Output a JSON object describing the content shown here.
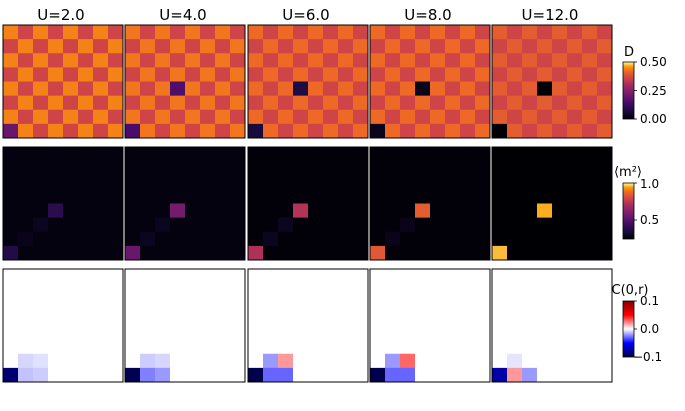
{
  "columns": [
    "U=2.0",
    "U=4.0",
    "U=6.0",
    "U=8.0",
    "U=12.0"
  ],
  "colorbars": [
    {
      "label": "D",
      "ticks": [
        "0.50",
        "0.25",
        "0.00"
      ]
    },
    {
      "label": "⟨m²⟩",
      "ticks": [
        "1.0",
        "0.5"
      ]
    },
    {
      "label": "C(0,r)",
      "ticks": [
        "0.1",
        "0.0",
        "−0.1"
      ]
    }
  ],
  "chart_data": {
    "type": "heatmap",
    "grid_size": 8,
    "rows": [
      {
        "quantity": "D",
        "colormap": "inferno",
        "range": [
          0.0,
          0.5
        ],
        "tiles": [
          {
            "U": 2.0,
            "checker_high": 0.44,
            "checker_low": 0.36,
            "special": [
              {
                "col": 0,
                "row": 7,
                "value": 0.2
              }
            ]
          },
          {
            "U": 4.0,
            "checker_high": 0.43,
            "checker_low": 0.36,
            "special": [
              {
                "col": 3,
                "row": 4,
                "value": 0.16
              },
              {
                "col": 0,
                "row": 7,
                "value": 0.15
              }
            ]
          },
          {
            "U": 6.0,
            "checker_high": 0.42,
            "checker_low": 0.36,
            "special": [
              {
                "col": 3,
                "row": 4,
                "value": 0.08
              },
              {
                "col": 0,
                "row": 7,
                "value": 0.07
              }
            ]
          },
          {
            "U": 8.0,
            "checker_high": 0.42,
            "checker_low": 0.36,
            "special": [
              {
                "col": 3,
                "row": 4,
                "value": 0.03
              },
              {
                "col": 0,
                "row": 7,
                "value": 0.03
              }
            ]
          },
          {
            "U": 12.0,
            "checker_high": 0.4,
            "checker_low": 0.36,
            "special": [
              {
                "col": 3,
                "row": 4,
                "value": 0.0
              },
              {
                "col": 0,
                "row": 7,
                "value": 0.0
              }
            ]
          }
        ]
      },
      {
        "quantity": "m2",
        "colormap": "inferno",
        "range": [
          0.25,
          1.0
        ],
        "tiles": [
          {
            "U": 2.0,
            "background": 0.27,
            "special": [
              {
                "col": 3,
                "row": 4,
                "value": 0.4
              },
              {
                "col": 2,
                "row": 5,
                "value": 0.3
              },
              {
                "col": 0,
                "row": 7,
                "value": 0.38
              },
              {
                "col": 1,
                "row": 6,
                "value": 0.29
              }
            ]
          },
          {
            "U": 4.0,
            "background": 0.27,
            "special": [
              {
                "col": 3,
                "row": 4,
                "value": 0.58
              },
              {
                "col": 2,
                "row": 5,
                "value": 0.3
              },
              {
                "col": 0,
                "row": 7,
                "value": 0.55
              },
              {
                "col": 1,
                "row": 6,
                "value": 0.3
              }
            ]
          },
          {
            "U": 6.0,
            "background": 0.26,
            "special": [
              {
                "col": 3,
                "row": 4,
                "value": 0.73
              },
              {
                "col": 2,
                "row": 5,
                "value": 0.3
              },
              {
                "col": 0,
                "row": 7,
                "value": 0.72
              },
              {
                "col": 1,
                "row": 6,
                "value": 0.3
              }
            ]
          },
          {
            "U": 8.0,
            "background": 0.26,
            "special": [
              {
                "col": 3,
                "row": 4,
                "value": 0.85
              },
              {
                "col": 2,
                "row": 5,
                "value": 0.29
              },
              {
                "col": 0,
                "row": 7,
                "value": 0.84
              },
              {
                "col": 1,
                "row": 6,
                "value": 0.29
              }
            ]
          },
          {
            "U": 12.0,
            "background": 0.25,
            "special": [
              {
                "col": 3,
                "row": 4,
                "value": 0.95
              },
              {
                "col": 0,
                "row": 7,
                "value": 0.96
              }
            ]
          }
        ]
      },
      {
        "quantity": "C(0,r)",
        "colormap": "seismic",
        "range": [
          -0.1,
          0.1
        ],
        "tiles": [
          {
            "U": 2.0,
            "special": [
              {
                "col": 0,
                "row": 7,
                "value": -0.09
              },
              {
                "col": 1,
                "row": 8,
                "value": -0.09
              },
              {
                "col": 1,
                "row": 7,
                "value": -0.012
              },
              {
                "col": 2,
                "row": 7,
                "value": -0.01
              },
              {
                "col": 1,
                "row": 6,
                "value": -0.008
              },
              {
                "col": 2,
                "row": 6,
                "value": -0.006
              }
            ]
          },
          {
            "U": 4.0,
            "special": [
              {
                "col": 0,
                "row": 7,
                "value": -0.098
              },
              {
                "col": 1,
                "row": 8,
                "value": -0.098
              },
              {
                "col": 1,
                "row": 7,
                "value": -0.025
              },
              {
                "col": 2,
                "row": 7,
                "value": -0.02
              },
              {
                "col": 1,
                "row": 6,
                "value": -0.01
              },
              {
                "col": 2,
                "row": 6,
                "value": -0.008
              }
            ]
          },
          {
            "U": 6.0,
            "special": [
              {
                "col": 0,
                "row": 7,
                "value": -0.1
              },
              {
                "col": 1,
                "row": 8,
                "value": -0.1
              },
              {
                "col": 1,
                "row": 7,
                "value": -0.03
              },
              {
                "col": 2,
                "row": 7,
                "value": -0.03
              },
              {
                "col": 1,
                "row": 6,
                "value": -0.02
              },
              {
                "col": 2,
                "row": 6,
                "value": 0.02
              }
            ]
          },
          {
            "U": 8.0,
            "special": [
              {
                "col": 0,
                "row": 7,
                "value": -0.1
              },
              {
                "col": 1,
                "row": 8,
                "value": -0.1
              },
              {
                "col": 1,
                "row": 7,
                "value": -0.03
              },
              {
                "col": 2,
                "row": 7,
                "value": -0.03
              },
              {
                "col": 1,
                "row": 6,
                "value": -0.02
              },
              {
                "col": 2,
                "row": 6,
                "value": 0.03
              }
            ]
          },
          {
            "U": 12.0,
            "special": [
              {
                "col": 0,
                "row": 7,
                "value": -0.075
              },
              {
                "col": 1,
                "row": 8,
                "value": -0.085
              },
              {
                "col": 1,
                "row": 7,
                "value": 0.02
              },
              {
                "col": 2,
                "row": 7,
                "value": -0.02
              },
              {
                "col": 1,
                "row": 6,
                "value": -0.005
              }
            ]
          }
        ]
      }
    ]
  }
}
